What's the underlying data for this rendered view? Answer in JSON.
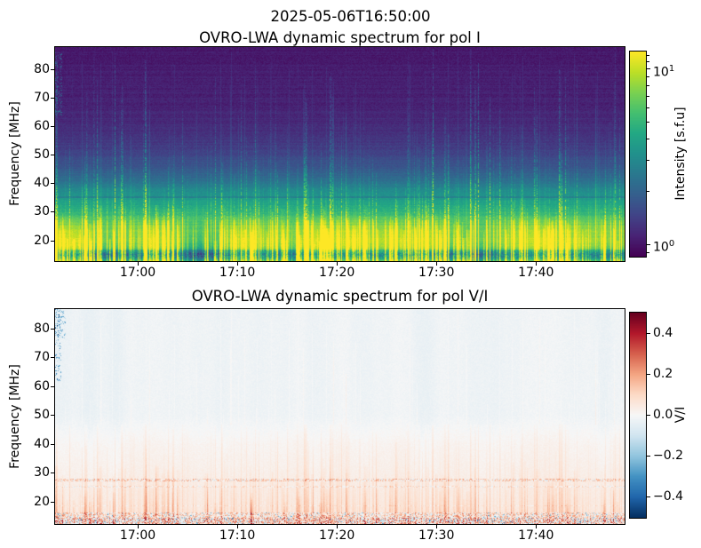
{
  "figure": {
    "suptitle": "2025-05-06T16:50:00",
    "background": "#ffffff",
    "instrument": "OVRO-LWA"
  },
  "chart_data": [
    {
      "type": "heatmap",
      "panel": "top",
      "title": "OVRO-LWA dynamic spectrum for pol I",
      "x_axis": {
        "tick_labels": [
          "17:00",
          "17:10",
          "17:20",
          "17:30",
          "17:40"
        ],
        "tick_minutes_after_16_50": [
          10,
          20,
          30,
          40,
          50
        ],
        "window_minutes_after_16_50": [
          1.7,
          58.9
        ]
      },
      "y_axis": {
        "label": "Frequency [MHz]",
        "tick_values": [
          20,
          30,
          40,
          50,
          60,
          70,
          80
        ],
        "range_mhz": [
          12.9,
          87.8
        ]
      },
      "colorbar": {
        "label": "Intensity [s.f.u]",
        "scale": "log",
        "range_sfu": [
          0.85,
          12.6
        ],
        "major_ticks": [
          {
            "base": "10",
            "exp": "1",
            "value": 10
          },
          {
            "base": "10",
            "exp": "0",
            "value": 1
          }
        ],
        "minor_tick_values": [
          0.9,
          2,
          3,
          4,
          5,
          6,
          7,
          8,
          9,
          11,
          12
        ],
        "colormap": "viridis"
      },
      "colormap_stops": [
        [
          0.0,
          "#440154"
        ],
        [
          0.1,
          "#482475"
        ],
        [
          0.2,
          "#414487"
        ],
        [
          0.3,
          "#355f8d"
        ],
        [
          0.4,
          "#2a788e"
        ],
        [
          0.5,
          "#21918c"
        ],
        [
          0.6,
          "#22a884"
        ],
        [
          0.7,
          "#44bf70"
        ],
        [
          0.8,
          "#7ad151"
        ],
        [
          0.9,
          "#bddf26"
        ],
        [
          1.0,
          "#fde725"
        ]
      ],
      "description": "Solar dynamic spectrum, Stokes I. Bright (yellow-green, up to >10 s.f.u) emission below ~30 MHz with dense vertical burst streaks drifting up to 40-85 MHz; dark quiet background (~1 s.f.u) above ~50 MHz; thin dark horizontal interference line near 35 MHz and dark speckled band near 14-16 MHz; teal patches at the left edge above 65 MHz.",
      "base_profile_mhz_value": [
        [
          12.9,
          0.7
        ],
        [
          13.8,
          0.55
        ],
        [
          15,
          0.46
        ],
        [
          16.3,
          0.58
        ],
        [
          17,
          0.76
        ],
        [
          18,
          0.83
        ],
        [
          20,
          0.86
        ],
        [
          23,
          0.84
        ],
        [
          26,
          0.78
        ],
        [
          29,
          0.68
        ],
        [
          32,
          0.6
        ],
        [
          35,
          0.53
        ],
        [
          38,
          0.45
        ],
        [
          41,
          0.37
        ],
        [
          45,
          0.28
        ],
        [
          50,
          0.2
        ],
        [
          55,
          0.155
        ],
        [
          60,
          0.125
        ],
        [
          65,
          0.105
        ],
        [
          70,
          0.095
        ],
        [
          80,
          0.08
        ],
        [
          87.8,
          0.07
        ]
      ],
      "render": {
        "streak_seed": 77,
        "pixel_seed": 913,
        "streaks_narrow": 300,
        "streaks_low_blobs": 80,
        "streaks_faint_tall": 85,
        "dark_line_mhz": 35.2,
        "faint_dark_line_mhz": 25.7
      }
    },
    {
      "type": "heatmap",
      "panel": "bottom",
      "title": "OVRO-LWA dynamic spectrum for pol V/I",
      "x_axis": {
        "tick_labels": [
          "17:00",
          "17:10",
          "17:20",
          "17:30",
          "17:40"
        ],
        "tick_minutes_after_16_50": [
          10,
          20,
          30,
          40,
          50
        ],
        "window_minutes_after_16_50": [
          1.7,
          58.9
        ]
      },
      "y_axis": {
        "label": "Frequency [MHz]",
        "tick_values": [
          20,
          30,
          40,
          50,
          60,
          70,
          80
        ],
        "range_mhz": [
          12.4,
          86.9
        ]
      },
      "colorbar": {
        "label": "V/I",
        "scale": "linear",
        "range": [
          -0.5,
          0.5
        ],
        "tick_labels": [
          "0.4",
          "0.2",
          "0.0",
          "−0.2",
          "−0.4"
        ],
        "tick_values": [
          0.4,
          0.2,
          0.0,
          -0.2,
          -0.4
        ],
        "colormap": "RdBu_r"
      },
      "colormap_stops": [
        [
          0.0,
          "#053061"
        ],
        [
          0.1,
          "#2166ac"
        ],
        [
          0.2,
          "#4393c3"
        ],
        [
          0.3,
          "#92c5de"
        ],
        [
          0.4,
          "#d1e5f0"
        ],
        [
          0.5,
          "#f7f7f7"
        ],
        [
          0.6,
          "#fddbc7"
        ],
        [
          0.7,
          "#f4a582"
        ],
        [
          0.8,
          "#d6604d"
        ],
        [
          0.9,
          "#b2182b"
        ],
        [
          1.0,
          "#67001f"
        ]
      ],
      "description": "Circular polarization fraction V/I. Near zero (white) overall: faint negative (pale blue) tint above ~50 MHz, weak positive (pale orange, ~+0.05 to +0.15) vertical burst streaks below ~45 MHz, speckled noisy horizontal bands near 27-28 MHz and below ~16 MHz, and blue specks at the left edge above ~62 MHz."
    }
  ]
}
